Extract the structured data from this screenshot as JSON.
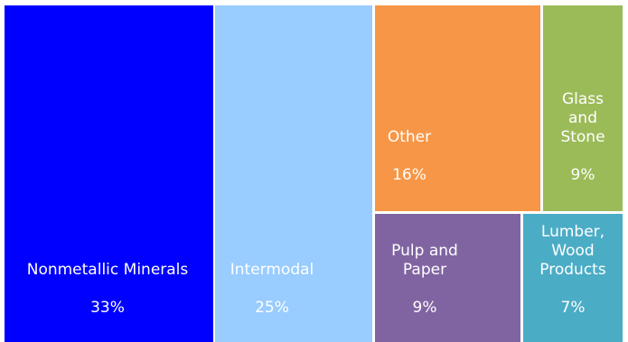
{
  "chart_data": {
    "type": "treemap",
    "unit": "%",
    "items": [
      {
        "name": "Nonmetallic Minerals",
        "value": 33,
        "value_label": "33%",
        "color": "#0000ff"
      },
      {
        "name": "Intermodal",
        "value": 25,
        "value_label": "25%",
        "color": "#99ccff"
      },
      {
        "name": "Other",
        "value": 16,
        "value_label": "16%",
        "color": "#f79646"
      },
      {
        "name": "Glass and Stone",
        "value": 9,
        "value_label": "9%",
        "color": "#9bbb59"
      },
      {
        "name": "Pulp and Paper",
        "value": 9,
        "value_label": "9%",
        "color": "#8064a2"
      },
      {
        "name": "Lumber, Wood Products",
        "value": 7,
        "value_label": "7%",
        "color": "#4bacc6"
      }
    ]
  }
}
